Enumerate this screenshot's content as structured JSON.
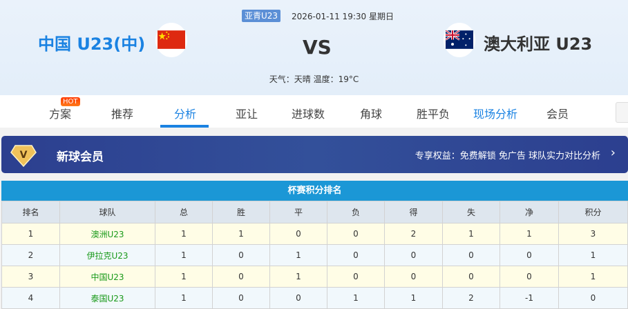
{
  "match": {
    "league": "亚青U23",
    "datetime": "2026-01-11 19:30 星期日",
    "home": "中国 U23(中)",
    "away": "澳大利亚 U23",
    "vs": "VS",
    "weather": "天气：天晴 温度：19°C"
  },
  "nav": {
    "items": [
      "方案",
      "推荐",
      "分析",
      "亚让",
      "进球数",
      "角球",
      "胜平负",
      "现场分析",
      "会员"
    ],
    "active": "分析",
    "hot_badge": "HOT"
  },
  "banner": {
    "title": "新球会员",
    "benefits": "专享权益：免费解锁 免广告 球队实力对比分析"
  },
  "standings": {
    "title": "杯赛积分排名",
    "headers": [
      "排名",
      "球队",
      "总",
      "胜",
      "平",
      "负",
      "得",
      "失",
      "净",
      "积分"
    ],
    "rows": [
      [
        "1",
        "澳洲U23",
        "1",
        "1",
        "0",
        "0",
        "2",
        "1",
        "1",
        "3"
      ],
      [
        "2",
        "伊拉克U23",
        "1",
        "0",
        "1",
        "0",
        "0",
        "0",
        "0",
        "1"
      ],
      [
        "3",
        "中国U23",
        "1",
        "0",
        "1",
        "0",
        "0",
        "0",
        "0",
        "1"
      ],
      [
        "4",
        "泰国U23",
        "1",
        "0",
        "0",
        "1",
        "1",
        "2",
        "-1",
        "0"
      ]
    ]
  }
}
